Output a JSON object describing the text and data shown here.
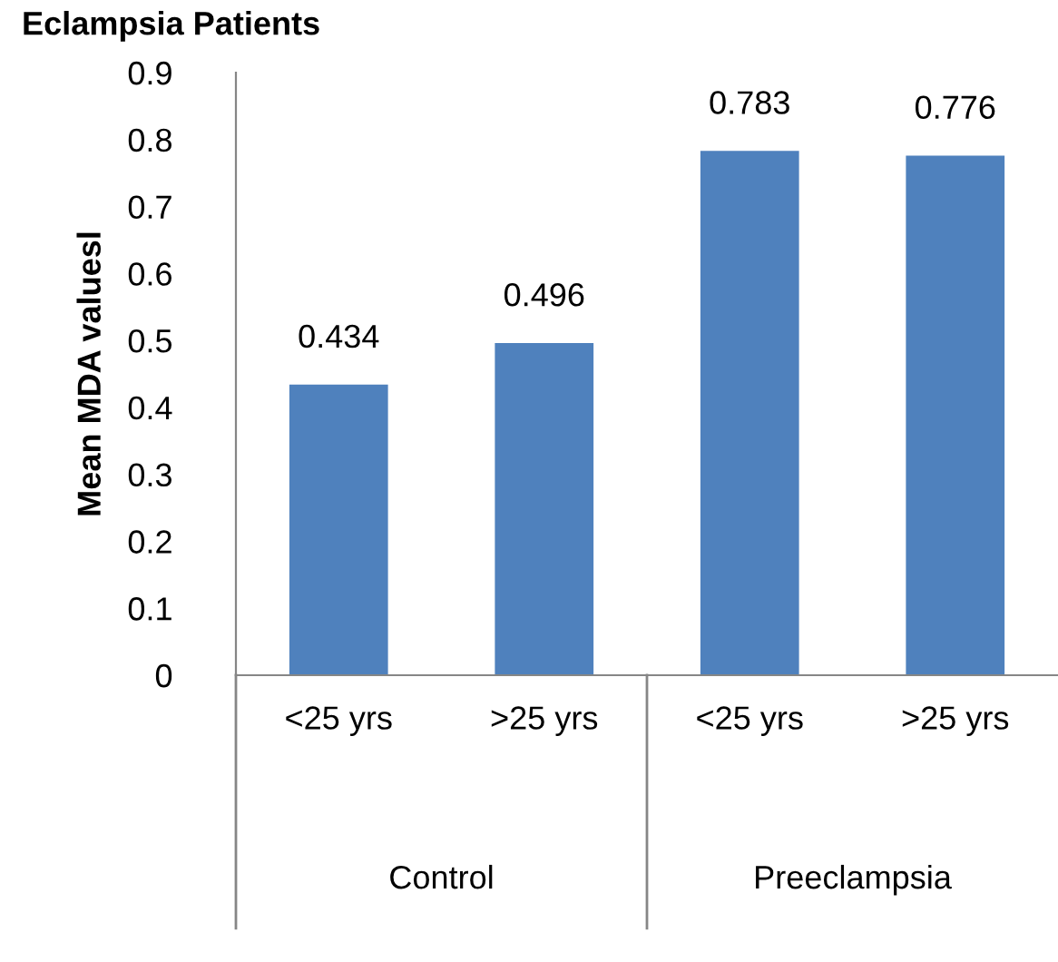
{
  "chart_data": {
    "type": "bar",
    "title": "Eclampsia Patients",
    "ylabel": "Mean MDA valuesl",
    "categories": [
      "<25 yrs",
      ">25 yrs",
      "<25 yrs",
      ">25 yrs"
    ],
    "values": [
      0.434,
      0.496,
      0.783,
      0.776
    ],
    "color": "#4f81bd",
    "data_labels": true,
    "ylim": [
      0,
      0.9
    ],
    "yticks": [
      0,
      0.1,
      0.2,
      0.3,
      0.4,
      0.5,
      0.6,
      0.7,
      0.8,
      0.9
    ],
    "annotations": [
      "Control",
      "Preeclampsia"
    ],
    "grid": false,
    "legend": false
  }
}
